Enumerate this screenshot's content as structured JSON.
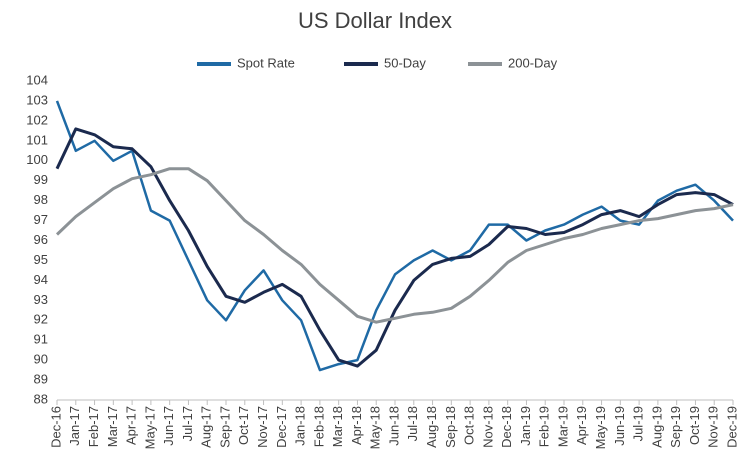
{
  "chart_data": {
    "type": "line",
    "title": "US Dollar Index",
    "categories": [
      "Dec-16",
      "Jan-17",
      "Feb-17",
      "Mar-17",
      "Apr-17",
      "May-17",
      "Jun-17",
      "Jul-17",
      "Aug-17",
      "Sep-17",
      "Oct-17",
      "Nov-17",
      "Dec-17",
      "Jan-18",
      "Feb-18",
      "Mar-18",
      "Apr-18",
      "May-18",
      "Jun-18",
      "Jul-18",
      "Aug-18",
      "Sep-18",
      "Oct-18",
      "Nov-18",
      "Dec-18",
      "Jan-19",
      "Feb-19",
      "Mar-19",
      "Apr-19",
      "May-19",
      "Jun-19",
      "Jul-19",
      "Aug-19",
      "Sep-19",
      "Oct-19",
      "Nov-19",
      "Dec-19"
    ],
    "series": [
      {
        "name": "Spot Rate",
        "color": "#1f6aa5",
        "values": [
          103.0,
          100.5,
          101.0,
          100.0,
          100.5,
          97.5,
          97.0,
          95.0,
          93.0,
          92.0,
          93.5,
          94.5,
          93.0,
          92.0,
          89.5,
          89.8,
          90.0,
          92.5,
          94.3,
          95.0,
          95.5,
          95.0,
          95.5,
          96.8,
          96.8,
          96.0,
          96.5,
          96.8,
          97.3,
          97.7,
          97.0,
          96.8,
          98.0,
          98.5,
          98.8,
          98.0,
          97.0
        ]
      },
      {
        "name": "50-Day",
        "color": "#1b2a4e",
        "values": [
          99.6,
          101.6,
          101.3,
          100.7,
          100.6,
          99.7,
          98.0,
          96.5,
          94.7,
          93.2,
          92.9,
          93.4,
          93.8,
          93.2,
          91.5,
          90.0,
          89.7,
          90.5,
          92.5,
          94.0,
          94.8,
          95.1,
          95.2,
          95.8,
          96.7,
          96.6,
          96.3,
          96.4,
          96.8,
          97.3,
          97.5,
          97.2,
          97.8,
          98.3,
          98.4,
          98.3,
          97.8
        ]
      },
      {
        "name": "200-Day",
        "color": "#8c9296",
        "values": [
          96.3,
          97.2,
          97.9,
          98.6,
          99.1,
          99.3,
          99.6,
          99.6,
          99.0,
          98.0,
          97.0,
          96.3,
          95.5,
          94.8,
          93.8,
          93.0,
          92.2,
          91.9,
          92.1,
          92.3,
          92.4,
          92.6,
          93.2,
          94.0,
          94.9,
          95.5,
          95.8,
          96.1,
          96.3,
          96.6,
          96.8,
          97.0,
          97.1,
          97.3,
          97.5,
          97.6,
          97.8
        ]
      }
    ],
    "ylim": [
      88,
      104
    ],
    "yticks": [
      88,
      89,
      90,
      91,
      92,
      93,
      94,
      95,
      96,
      97,
      98,
      99,
      100,
      101,
      102,
      103,
      104
    ],
    "grid": false
  }
}
